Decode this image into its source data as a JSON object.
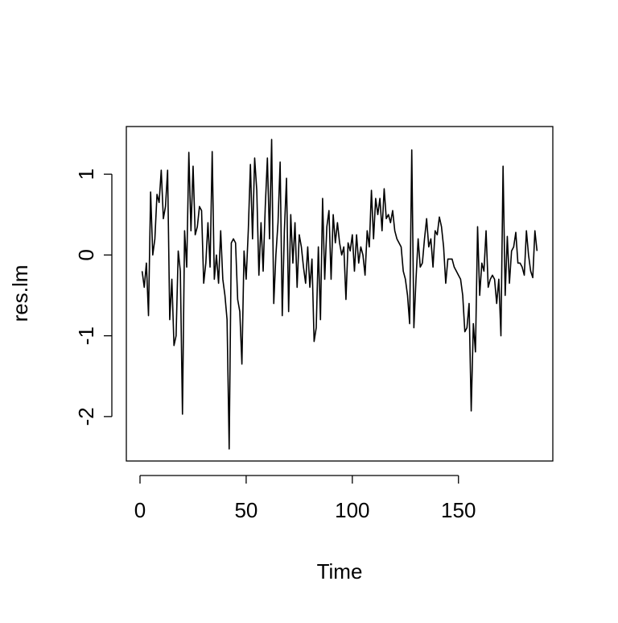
{
  "chart_data": {
    "type": "line",
    "xlabel": "Time",
    "ylabel": "res.lm",
    "x": [
      1,
      2,
      3,
      4,
      5,
      6,
      7,
      8,
      9,
      10,
      11,
      12,
      13,
      14,
      15,
      16,
      17,
      18,
      19,
      20,
      21,
      22,
      23,
      24,
      25,
      26,
      27,
      28,
      29,
      30,
      31,
      32,
      33,
      34,
      35,
      36,
      37,
      38,
      39,
      40,
      41,
      42,
      43,
      44,
      45,
      46,
      47,
      48,
      49,
      50,
      51,
      52,
      53,
      54,
      55,
      56,
      57,
      58,
      59,
      60,
      61,
      62,
      63,
      64,
      65,
      66,
      67,
      68,
      69,
      70,
      71,
      72,
      73,
      74,
      75,
      76,
      77,
      78,
      79,
      80,
      81,
      82,
      83,
      84,
      85,
      86,
      87,
      88,
      89,
      90,
      91,
      92,
      93,
      94,
      95,
      96,
      97,
      98,
      99,
      100,
      101,
      102,
      103,
      104,
      105,
      106,
      107,
      108,
      109,
      110,
      111,
      112,
      113,
      114,
      115,
      116,
      117,
      118,
      119,
      120,
      121,
      122,
      123,
      124,
      125,
      126,
      127,
      128,
      129,
      130,
      131,
      132,
      133,
      134,
      135,
      136,
      137,
      138,
      139,
      140,
      141,
      142,
      143,
      144,
      145,
      146,
      147,
      148,
      149,
      150,
      151,
      152,
      153,
      154,
      155,
      156,
      157,
      158,
      159,
      160,
      161,
      162,
      163,
      164,
      165,
      166,
      167,
      168,
      169,
      170,
      171,
      172,
      173,
      174,
      175,
      176,
      177,
      178,
      179,
      180,
      181,
      182,
      183,
      184,
      185,
      186,
      187
    ],
    "series": [
      {
        "color": "#000000",
        "values": [
          -0.2,
          -0.4,
          -0.1,
          -0.75,
          0.78,
          0.0,
          0.2,
          0.75,
          0.65,
          1.05,
          0.45,
          0.6,
          1.05,
          -0.8,
          -0.3,
          -1.12,
          -1.0,
          0.05,
          -0.2,
          -1.97,
          0.3,
          -0.15,
          1.27,
          0.3,
          1.1,
          0.25,
          0.35,
          0.6,
          0.55,
          -0.35,
          -0.1,
          0.4,
          -0.15,
          1.28,
          -0.3,
          0.0,
          -0.35,
          0.3,
          -0.3,
          -0.5,
          -0.8,
          -2.4,
          0.15,
          0.2,
          0.15,
          -0.55,
          -0.7,
          -1.35,
          0.05,
          -0.3,
          0.3,
          1.12,
          0.2,
          1.2,
          0.8,
          -0.25,
          0.4,
          -0.2,
          0.6,
          1.2,
          0.2,
          1.43,
          -0.6,
          0.0,
          0.4,
          1.15,
          -0.75,
          0.3,
          0.95,
          -0.7,
          0.5,
          -0.1,
          0.4,
          -0.4,
          0.25,
          0.1,
          -0.15,
          -0.35,
          0.1,
          -0.4,
          -0.05,
          -1.07,
          -0.9,
          0.1,
          -0.8,
          0.7,
          -0.3,
          0.35,
          0.55,
          -0.3,
          0.5,
          0.15,
          0.4,
          0.15,
          0.0,
          0.1,
          -0.55,
          0.15,
          0.05,
          0.25,
          -0.2,
          0.25,
          -0.1,
          0.1,
          0.0,
          -0.25,
          0.3,
          0.1,
          0.8,
          0.2,
          0.7,
          0.5,
          0.7,
          0.3,
          0.82,
          0.45,
          0.5,
          0.4,
          0.55,
          0.3,
          0.2,
          0.15,
          0.1,
          -0.2,
          -0.3,
          -0.5,
          -0.85,
          1.3,
          -0.9,
          -0.3,
          0.2,
          -0.15,
          -0.1,
          0.2,
          0.45,
          0.1,
          0.2,
          -0.15,
          0.3,
          0.25,
          0.47,
          0.35,
          0.1,
          -0.35,
          -0.05,
          -0.05,
          -0.05,
          -0.15,
          -0.2,
          -0.25,
          -0.3,
          -0.5,
          -0.95,
          -0.9,
          -0.6,
          -1.93,
          -0.85,
          -1.2,
          0.35,
          -0.5,
          -0.1,
          -0.2,
          0.3,
          -0.4,
          -0.3,
          -0.25,
          -0.3,
          -0.6,
          -0.3,
          -1.0,
          1.1,
          -0.5,
          0.23,
          -0.35,
          0.05,
          0.1,
          0.28,
          -0.1,
          -0.1,
          -0.15,
          -0.25,
          0.3,
          0.0,
          -0.2,
          -0.28,
          0.3,
          0.05
        ]
      }
    ],
    "xlim": [
      -6.44,
      194.44
    ],
    "xticks": [
      0,
      50,
      100,
      150
    ],
    "ylim": [
      -2.55,
      1.59
    ],
    "yticks": [
      -2,
      -1,
      0,
      1
    ]
  }
}
